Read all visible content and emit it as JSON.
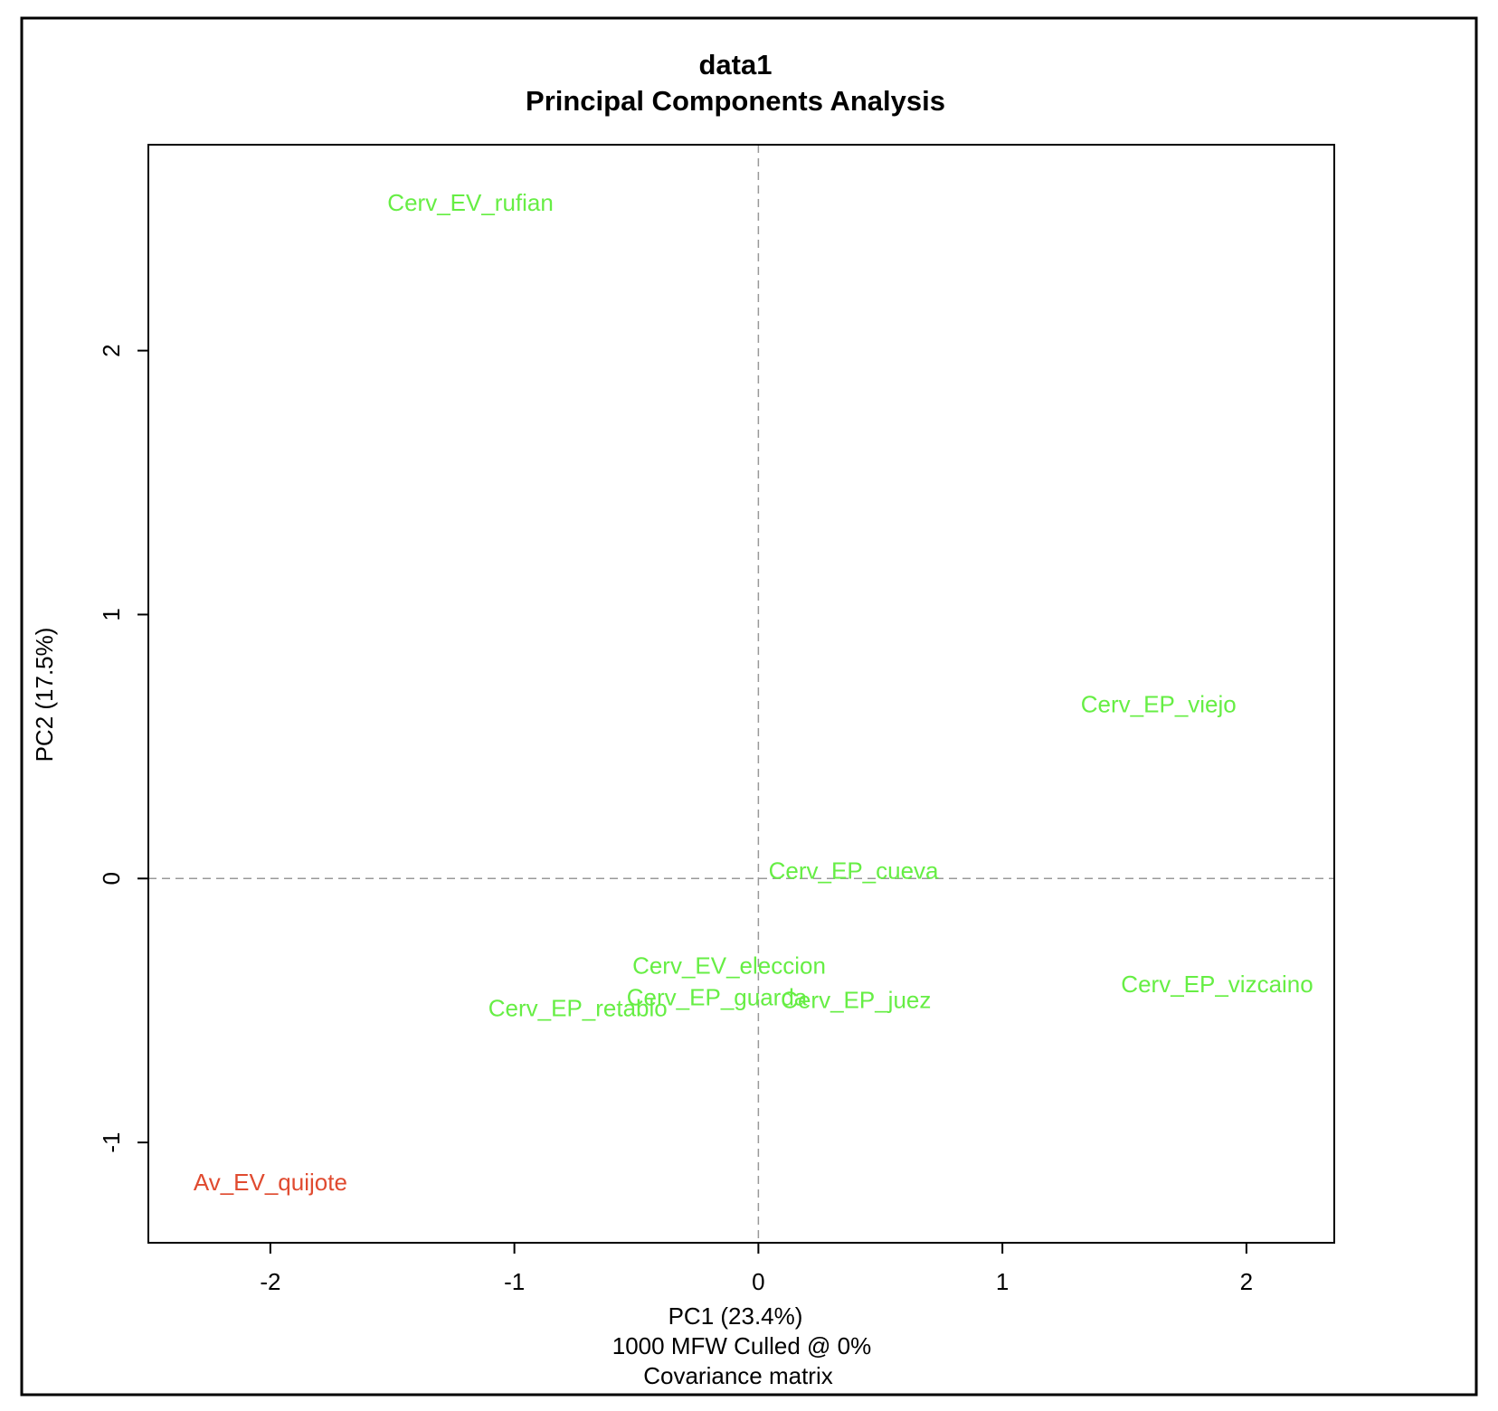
{
  "chart_data": {
    "type": "scatter",
    "title": "data1",
    "subtitle": "Principal Components Analysis",
    "xlabel": "PC1 (23.4%)",
    "ylabel": "PC2 (17.5%)",
    "footer_lines": [
      "1000 MFW  Culled @ 0%",
      "Covariance matrix"
    ],
    "xlim": [
      -2.5,
      2.36
    ],
    "ylim": [
      -1.38,
      2.78
    ],
    "x_ticks": [
      -2,
      -1,
      0,
      1,
      2
    ],
    "y_ticks": [
      -1,
      0,
      1,
      2
    ],
    "x_tick_labels": [
      "-2",
      "-1",
      "0",
      "1",
      "2"
    ],
    "y_tick_labels": [
      "-1",
      "0",
      "1",
      "2"
    ],
    "reference_lines": {
      "x": 0,
      "y": 0,
      "style": "dashed",
      "color": "#999999"
    },
    "grid": false,
    "colors": {
      "group_cerv": "#66ee44",
      "group_av": "#e04a2f"
    },
    "points": [
      {
        "label": "Cerv_EV_rufian",
        "x": -1.18,
        "y": 2.56,
        "color": "#66ee44"
      },
      {
        "label": "Cerv_EP_viejo",
        "x": 1.64,
        "y": 0.66,
        "color": "#66ee44"
      },
      {
        "label": "Cerv_EP_cueva",
        "x": 0.39,
        "y": 0.03,
        "color": "#66ee44"
      },
      {
        "label": "Cerv_EV_eleccion",
        "x": -0.12,
        "y": -0.33,
        "color": "#66ee44"
      },
      {
        "label": "Cerv_EP_vizcaino",
        "x": 1.88,
        "y": -0.4,
        "color": "#66ee44"
      },
      {
        "label": "Cerv_EP_guarda",
        "x": -0.17,
        "y": -0.45,
        "color": "#66ee44"
      },
      {
        "label": "Cerv_EP_juez",
        "x": 0.4,
        "y": -0.46,
        "color": "#66ee44"
      },
      {
        "label": "Cerv_EP_retablo",
        "x": -0.74,
        "y": -0.49,
        "color": "#66ee44"
      },
      {
        "label": "Av_EV_quijote",
        "x": -2.0,
        "y": -1.15,
        "color": "#e04a2f"
      }
    ]
  }
}
